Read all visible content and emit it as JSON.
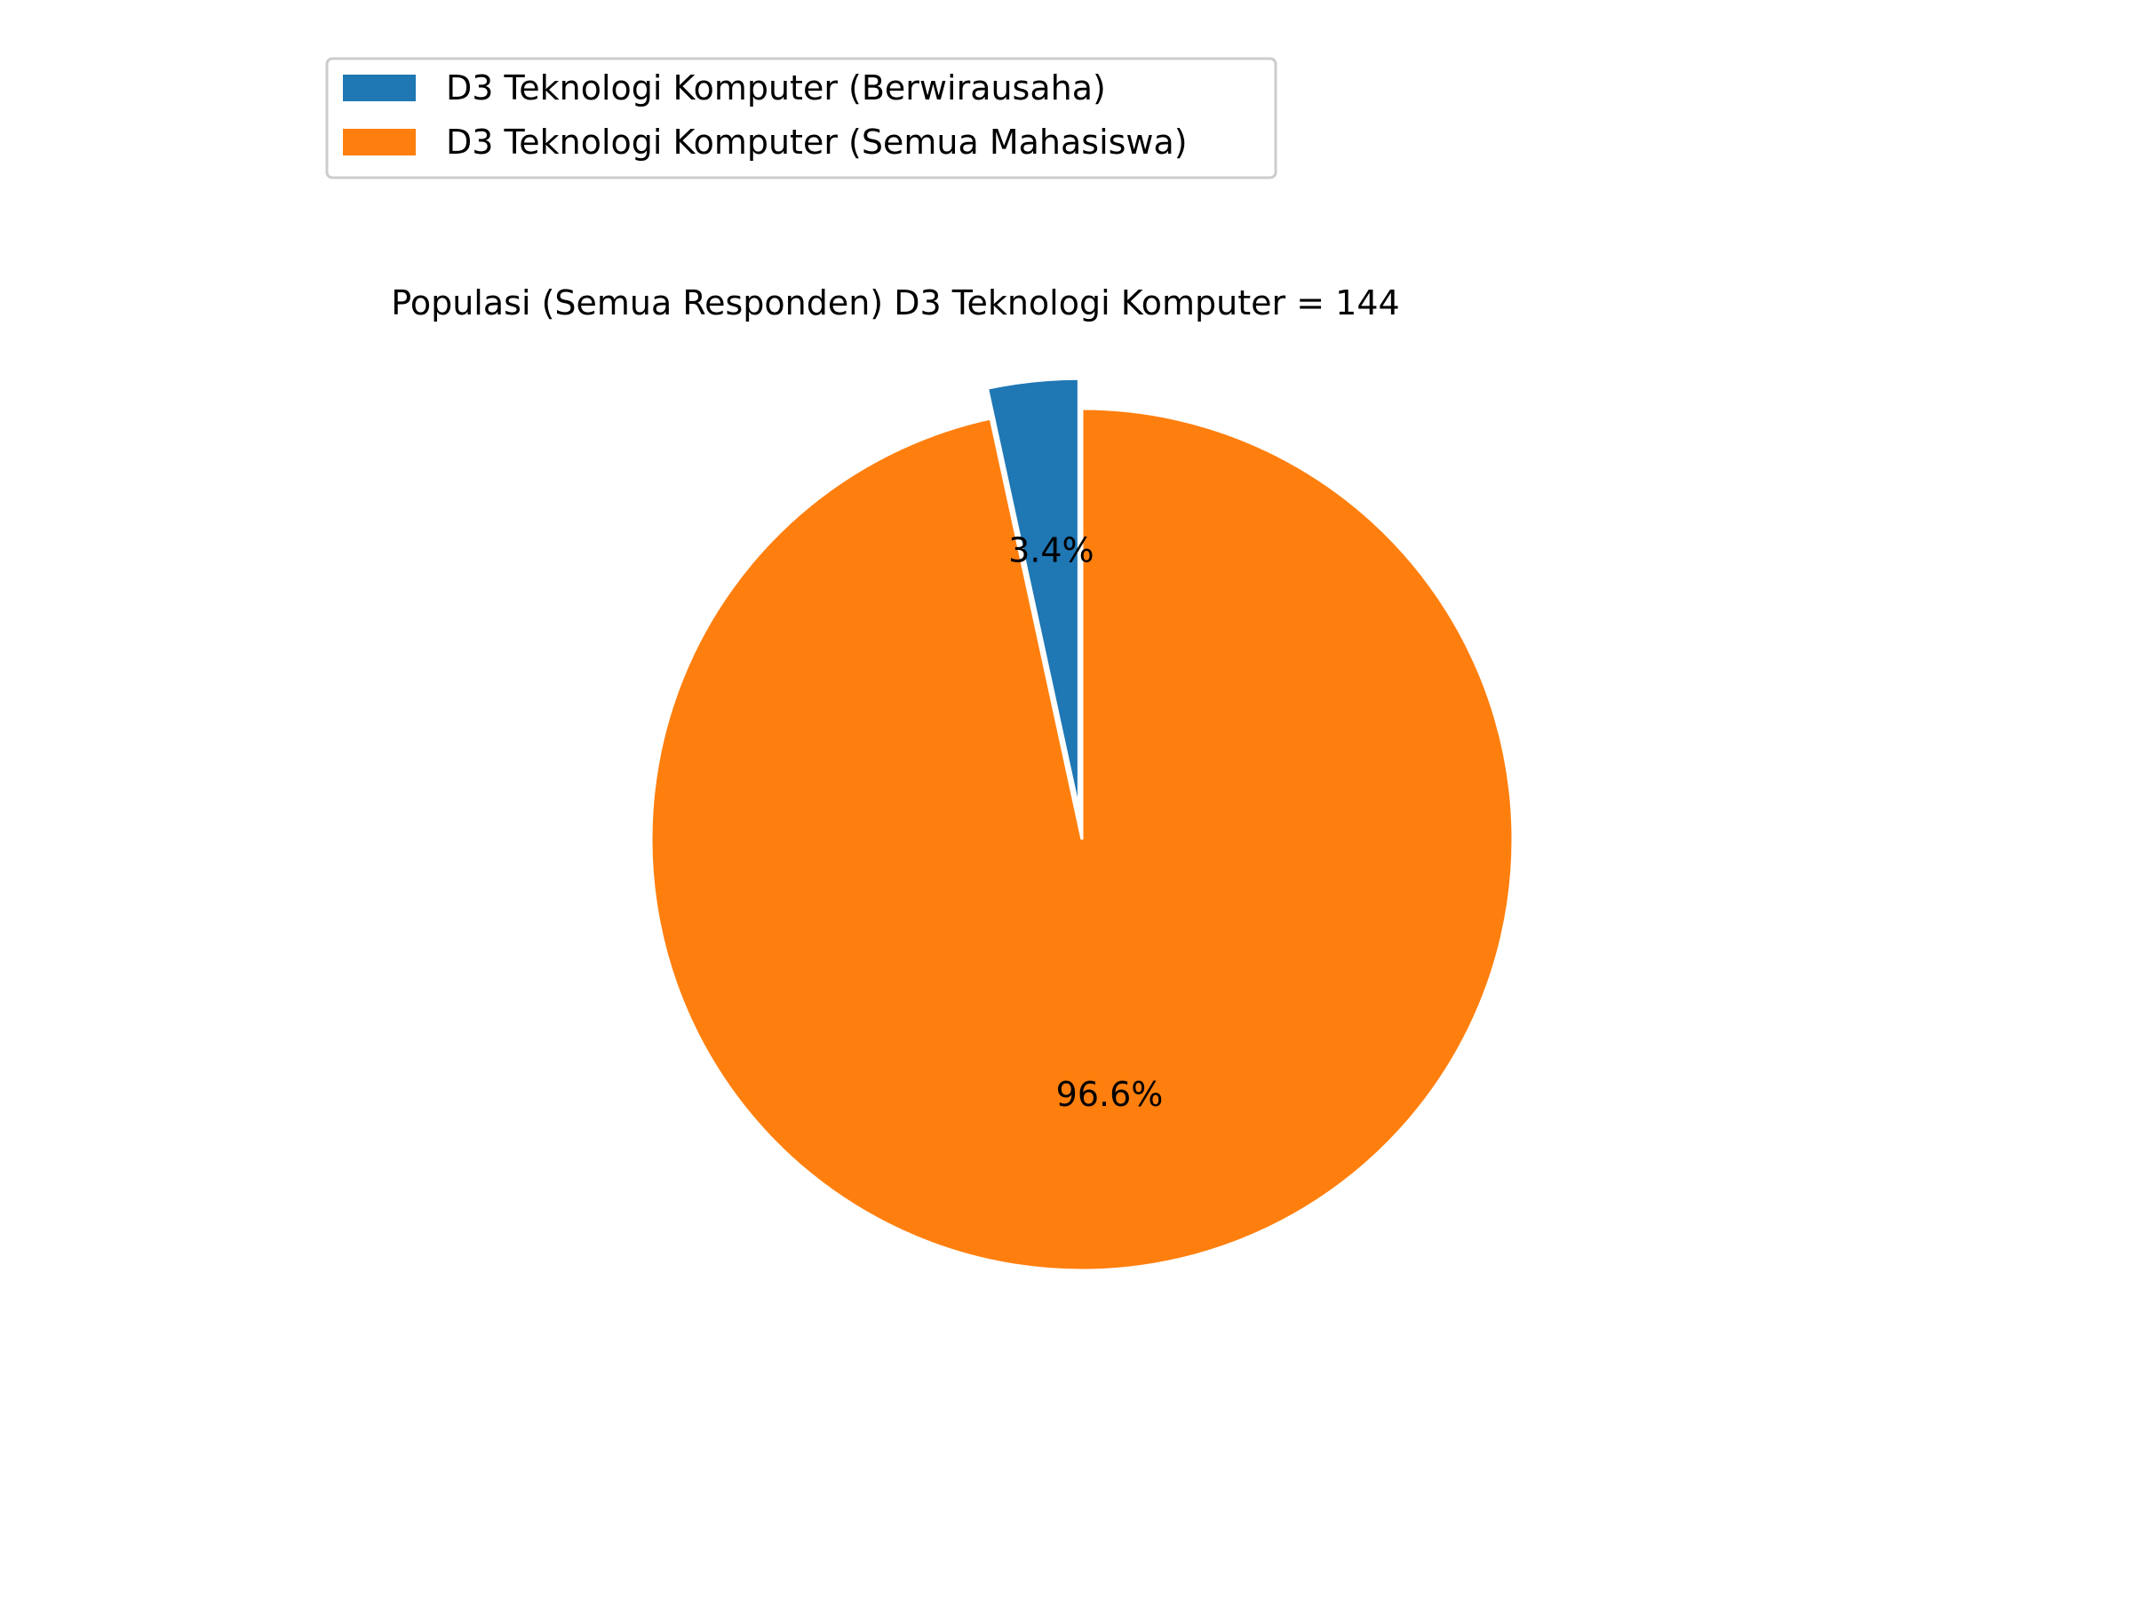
{
  "chart_data": {
    "type": "pie",
    "title": "Populasi (Semua Responden) D3 Teknologi Komputer = 144",
    "labels": [
      "D3 Teknologi Komputer (Berwirausaha)",
      "D3 Teknologi Komputer (Semua Mahasiswa)"
    ],
    "values": [
      3.4,
      96.6
    ],
    "value_labels": [
      "3.4%",
      "96.6%"
    ],
    "colors": [
      "#1f77b4",
      "#ff7f0e"
    ],
    "start_angle": "top",
    "direction": "counterclockwise",
    "exploded_slice": "D3 Teknologi Komputer (Berwirausaha)",
    "legend_position": "upper-left"
  }
}
